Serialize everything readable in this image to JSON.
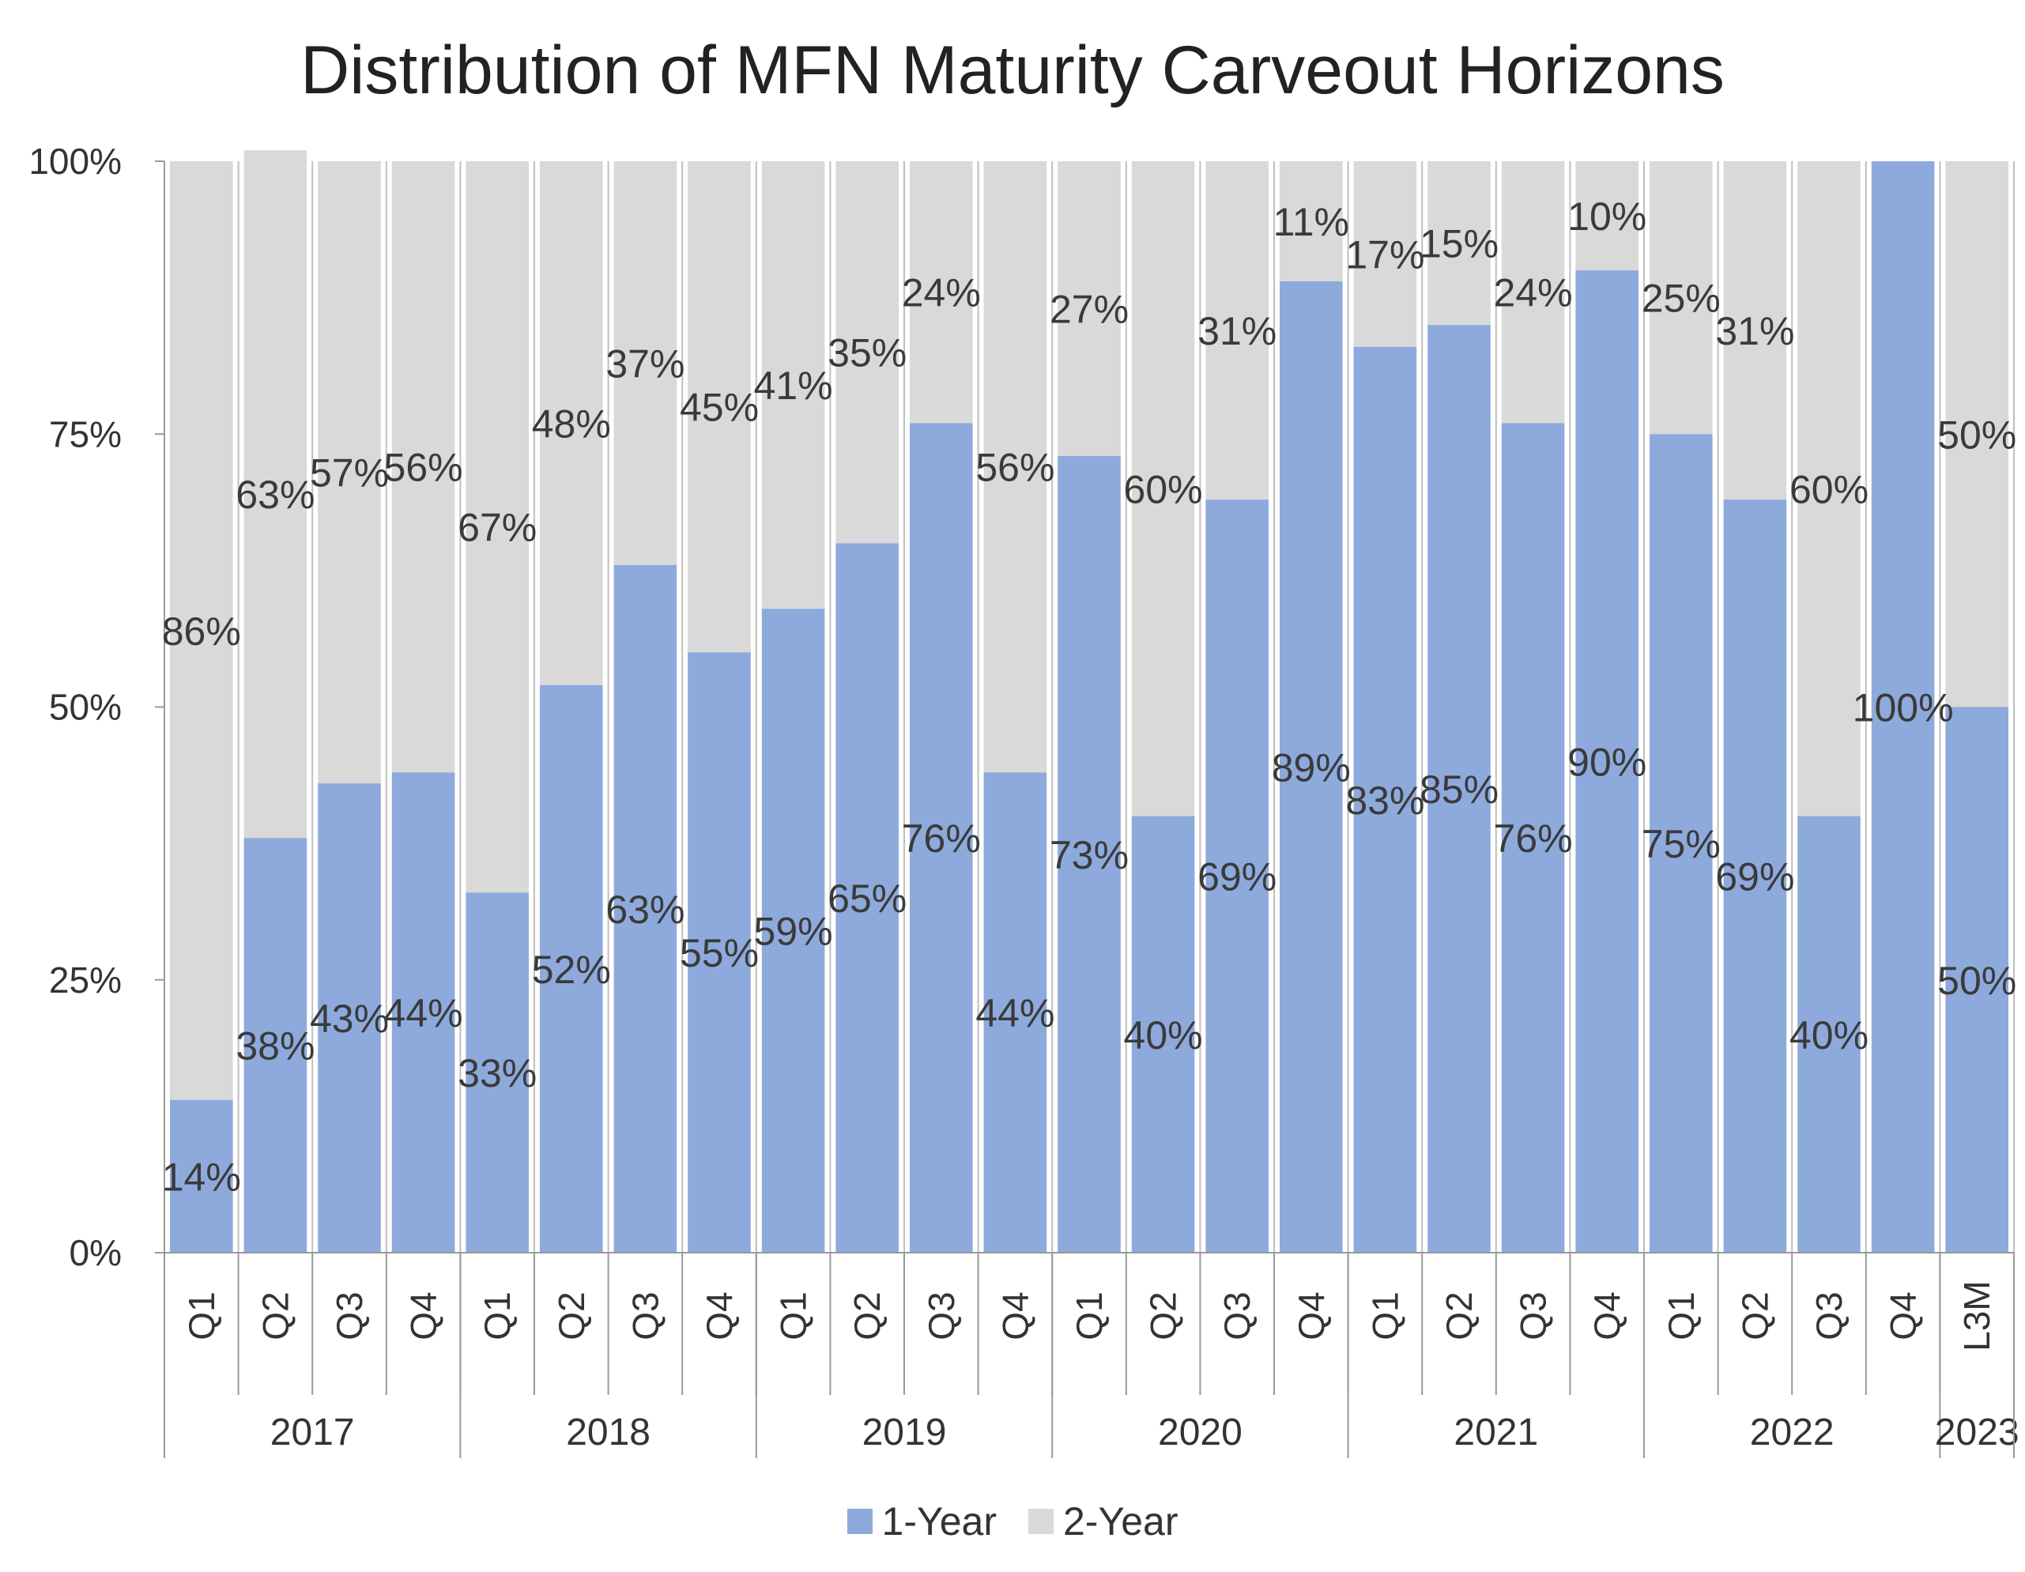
{
  "chart_data": {
    "type": "bar",
    "stacked": true,
    "title": "Distribution of MFN Maturity Carveout Horizons",
    "ylim": [
      0,
      100
    ],
    "y_ticks": [
      "0%",
      "25%",
      "50%",
      "75%",
      "100%"
    ],
    "grid": "vertical lines between bars",
    "legend_position": "bottom",
    "categories": [
      "Q1",
      "Q2",
      "Q3",
      "Q4",
      "Q1",
      "Q2",
      "Q3",
      "Q4",
      "Q1",
      "Q2",
      "Q3",
      "Q4",
      "Q1",
      "Q2",
      "Q3",
      "Q4",
      "Q1",
      "Q2",
      "Q3",
      "Q4",
      "Q1",
      "Q2",
      "Q3",
      "Q4",
      "L3M"
    ],
    "groups": [
      {
        "label": "2017",
        "count": 4
      },
      {
        "label": "2018",
        "count": 4
      },
      {
        "label": "2019",
        "count": 4
      },
      {
        "label": "2020",
        "count": 4
      },
      {
        "label": "2021",
        "count": 4
      },
      {
        "label": "2022",
        "count": 4
      },
      {
        "label": "2023",
        "count": 1
      }
    ],
    "series": [
      {
        "name": "1-Year",
        "color": "#8eaadc",
        "values": [
          14,
          38,
          43,
          44,
          33,
          52,
          63,
          55,
          59,
          65,
          76,
          44,
          73,
          40,
          69,
          89,
          83,
          85,
          76,
          90,
          75,
          69,
          40,
          100,
          50
        ],
        "labels": [
          "14%",
          "38%",
          "43%",
          "44%",
          "33%",
          "52%",
          "63%",
          "55%",
          "59%",
          "65%",
          "76%",
          "44%",
          "73%",
          "40%",
          "69%",
          "89%",
          "83%",
          "85%",
          "76%",
          "90%",
          "75%",
          "69%",
          "40%",
          "100%",
          "50%"
        ]
      },
      {
        "name": "2-Year",
        "color": "#d9d9d9",
        "values": [
          86,
          63,
          57,
          56,
          67,
          48,
          37,
          45,
          41,
          35,
          24,
          56,
          27,
          60,
          31,
          11,
          17,
          15,
          24,
          10,
          25,
          31,
          60,
          0,
          50
        ],
        "labels": [
          "86%",
          "63%",
          "57%",
          "56%",
          "67%",
          "48%",
          "37%",
          "45%",
          "41%",
          "35%",
          "24%",
          "56%",
          "27%",
          "60%",
          "31%",
          "11%",
          "17%",
          "15%",
          "24%",
          "10%",
          "25%",
          "31%",
          "60%",
          "",
          "50%"
        ]
      }
    ]
  }
}
